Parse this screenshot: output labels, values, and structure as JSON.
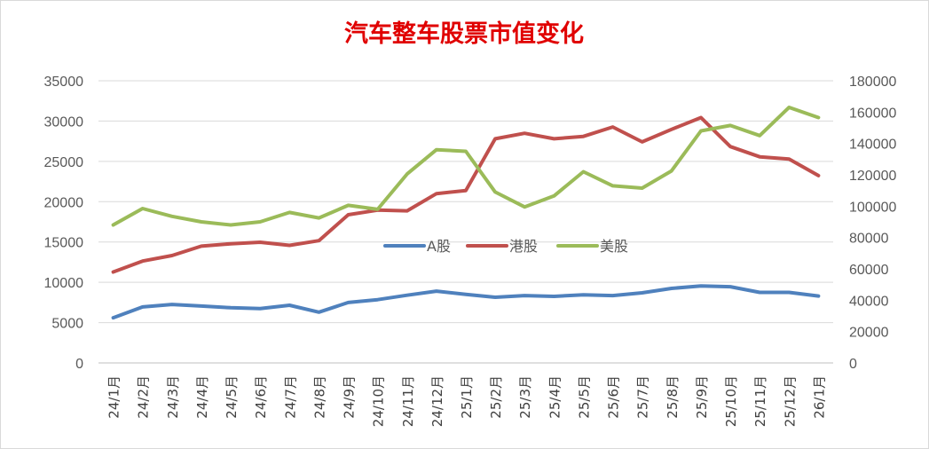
{
  "chart_data": {
    "type": "line",
    "title": "汽车整车股票市值变化",
    "xlabel": "",
    "ylabel": "",
    "ylim": [
      0,
      35000
    ],
    "y2lim": [
      0,
      180000
    ],
    "yticks": [
      "0",
      "5000",
      "10000",
      "15000",
      "20000",
      "25000",
      "30000",
      "35000"
    ],
    "y2ticks": [
      "0",
      "20000",
      "40000",
      "60000",
      "80000",
      "100000",
      "120000",
      "140000",
      "160000",
      "180000"
    ],
    "grid": true,
    "legend_position": "center",
    "categories": [
      "24/1月",
      "24/2月",
      "24/3月",
      "24/4月",
      "24/5月",
      "24/6月",
      "24/7月",
      "24/8月",
      "24/9月",
      "24/10月",
      "24/11月",
      "24/12月",
      "25/1月",
      "25/2月",
      "25/3月",
      "25/4月",
      "25/5月",
      "25/6月",
      "25/7月",
      "25/8月",
      "25/9月",
      "25/10月",
      "25/11月",
      "25/12月",
      "26/1月"
    ],
    "series": [
      {
        "name": "A股",
        "color": "#4f81bd",
        "axis": "left",
        "values": [
          5600,
          6950,
          7250,
          7050,
          6850,
          6750,
          7150,
          6300,
          7500,
          7850,
          8400,
          8900,
          8500,
          8150,
          8350,
          8250,
          8450,
          8350,
          8700,
          9250,
          9550,
          9450,
          8750,
          8750,
          8300
        ]
      },
      {
        "name": "港股",
        "color": "#c0504d",
        "axis": "right",
        "values": [
          58000,
          65000,
          68500,
          74500,
          76000,
          77000,
          75000,
          78000,
          94500,
          97500,
          97000,
          108000,
          110000,
          143000,
          146500,
          143000,
          144500,
          150500,
          141000,
          149000,
          156500,
          138000,
          131500,
          130000,
          119500
        ]
      },
      {
        "name": "美股",
        "color": "#9bbb59",
        "axis": "right",
        "values": [
          88000,
          98500,
          93500,
          90000,
          88000,
          90000,
          96000,
          92500,
          100500,
          98000,
          120500,
          136000,
          135000,
          109000,
          99500,
          106500,
          122000,
          113000,
          111500,
          122500,
          148000,
          151500,
          145000,
          163000,
          156500
        ]
      }
    ]
  }
}
